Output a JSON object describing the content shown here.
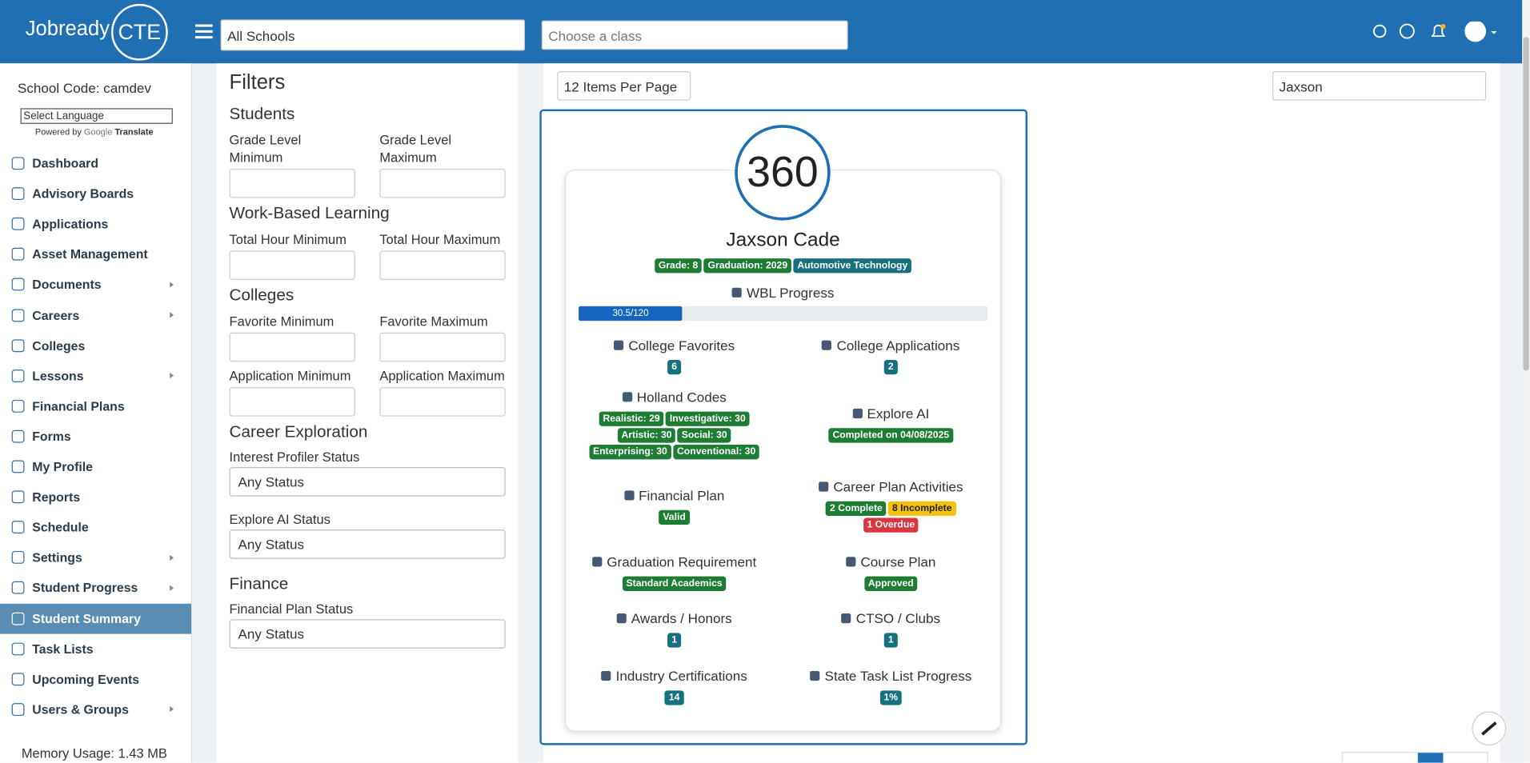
{
  "header": {
    "logo": "Jobready",
    "logo_cte": "CTE",
    "school_select": "All Schools",
    "class_select": "Choose a class"
  },
  "sidebar": {
    "school_code": "School Code: camdev",
    "language": "Select Language",
    "powered_by": "Powered by",
    "google": "Google",
    "translate": "Translate",
    "items": [
      {
        "label": "Dashboard"
      },
      {
        "label": "Advisory Boards"
      },
      {
        "label": "Applications"
      },
      {
        "label": "Asset Management"
      },
      {
        "label": "Documents",
        "submenu": true
      },
      {
        "label": "Careers",
        "submenu": true
      },
      {
        "label": "Colleges"
      },
      {
        "label": "Lessons",
        "submenu": true
      },
      {
        "label": "Financial Plans"
      },
      {
        "label": "Forms"
      },
      {
        "label": "My Profile"
      },
      {
        "label": "Reports"
      },
      {
        "label": "Schedule"
      },
      {
        "label": "Settings",
        "submenu": true
      },
      {
        "label": "Student Progress",
        "submenu": true
      },
      {
        "label": "Student Summary",
        "active": true
      },
      {
        "label": "Task Lists"
      },
      {
        "label": "Upcoming Events"
      },
      {
        "label": "Users & Groups",
        "submenu": true
      }
    ],
    "memory": "Memory Usage: 1.43 MB"
  },
  "filters": {
    "title": "Filters",
    "sections": [
      {
        "title": "Students",
        "fields": [
          {
            "label": "Grade Level Minimum"
          },
          {
            "label": "Grade Level Maximum"
          }
        ]
      },
      {
        "title": "Work-Based Learning",
        "fields": [
          {
            "label": "Total Hour Minimum"
          },
          {
            "label": "Total Hour Maximum"
          }
        ]
      },
      {
        "title": "Colleges",
        "fields": [
          {
            "label": "Favorite Minimum"
          },
          {
            "label": "Favorite Maximum"
          },
          {
            "label": "Application Minimum"
          },
          {
            "label": "Application Maximum"
          }
        ]
      },
      {
        "title": "Career Exploration",
        "selects": [
          {
            "label": "Interest Profiler Status",
            "option": "Any Status"
          },
          {
            "label": "Explore AI Status",
            "option": "Any Status"
          }
        ]
      },
      {
        "title": "Finance",
        "selects": [
          {
            "label": "Financial Plan Status",
            "option": "Any Status"
          }
        ]
      }
    ]
  },
  "toolbar": {
    "per_page": "12 Items Per Page",
    "search": "Jaxson"
  },
  "student": {
    "avatar": "360",
    "name": "Jaxson Cade",
    "badges": [
      {
        "text": "Grade: 8",
        "color": "#1e7d34"
      },
      {
        "text": "Graduation: 2029",
        "color": "#1e7d34"
      },
      {
        "text": "Automotive Technology",
        "color": "#16707f"
      }
    ],
    "wbl": {
      "title": "WBL Progress",
      "value": 30.5,
      "max": 120,
      "label": "30.5/120"
    },
    "tiles": [
      {
        "title": "College Favorites",
        "badges": [
          {
            "text": "6",
            "color": "#16707f"
          }
        ]
      },
      {
        "title": "College Applications",
        "badges": [
          {
            "text": "2",
            "color": "#16707f"
          }
        ]
      },
      {
        "title": "Holland Codes",
        "badges": [
          {
            "text": "Realistic: 29",
            "color": "#1e7d34"
          },
          {
            "text": "Investigative: 30",
            "color": "#1e7d34"
          },
          {
            "text": "Artistic: 30",
            "color": "#1e7d34"
          },
          {
            "text": "Social: 30",
            "color": "#1e7d34"
          },
          {
            "text": "Enterprising: 30",
            "color": "#1e7d34"
          },
          {
            "text": "Conventional: 30",
            "color": "#1e7d34"
          }
        ]
      },
      {
        "title": "Explore AI",
        "badges": [
          {
            "text": "Completed on 04/08/2025",
            "color": "#1e7d34"
          }
        ]
      },
      {
        "title": "Financial Plan",
        "badges": [
          {
            "text": "Valid",
            "color": "#1e7d34"
          }
        ]
      },
      {
        "title": "Career Plan Activities",
        "badges": [
          {
            "text": "2 Complete",
            "color": "#1e7d34"
          },
          {
            "text": "8 Incomplete",
            "color": "#f4c20d",
            "dark": true
          },
          {
            "text": "1 Overdue",
            "color": "#d9363e"
          }
        ]
      },
      {
        "title": "Graduation Requirement",
        "badges": [
          {
            "text": "Standard Academics",
            "color": "#1e7d34"
          }
        ]
      },
      {
        "title": "Course Plan",
        "badges": [
          {
            "text": "Approved",
            "color": "#1e7d34"
          }
        ]
      },
      {
        "title": "Awards / Honors",
        "badges": [
          {
            "text": "1",
            "color": "#16707f"
          }
        ]
      },
      {
        "title": "CTSO / Clubs",
        "badges": [
          {
            "text": "1",
            "color": "#16707f"
          }
        ]
      },
      {
        "title": "Industry Certifications",
        "badges": [
          {
            "text": "14",
            "color": "#16707f"
          }
        ]
      },
      {
        "title": "State Task List Progress",
        "badges": [
          {
            "text": "1%",
            "color": "#16707f"
          }
        ]
      }
    ]
  }
}
